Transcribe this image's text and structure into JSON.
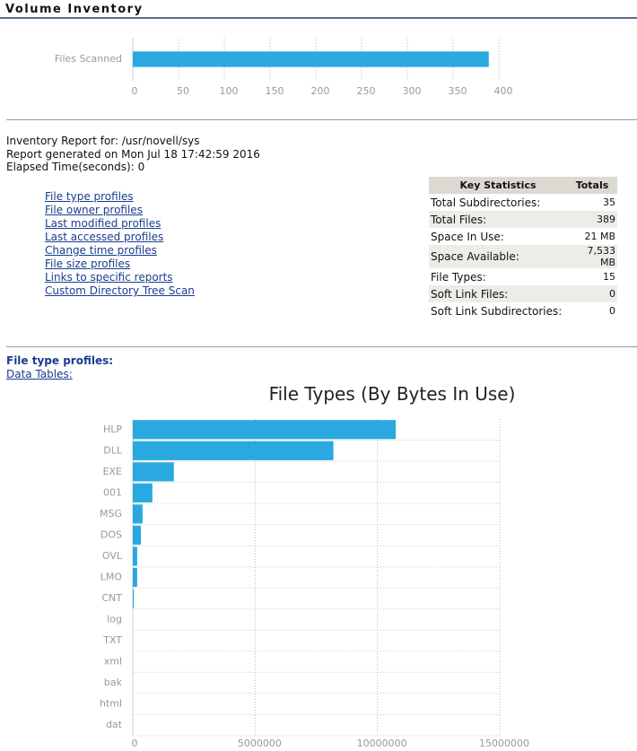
{
  "header": {
    "title": "Volume Inventory"
  },
  "report": {
    "lines": [
      "Inventory Report for: /usr/novell/sys",
      "Report generated on Mon Jul 18 17:42:59 2016",
      "Elapsed Time(seconds): 0"
    ]
  },
  "links": [
    "File type profiles",
    "File owner profiles",
    "Last modified profiles",
    "Last accessed profiles",
    "Change time profiles",
    "File size profiles",
    "Links to specific reports",
    "Custom Directory Tree Scan"
  ],
  "key_statistics": {
    "header": [
      "Key Statistics",
      "Totals"
    ],
    "rows": [
      [
        "Total Subdirectories:",
        "35"
      ],
      [
        "Total Files:",
        "389"
      ],
      [
        "Space In Use:",
        "21 MB"
      ],
      [
        "Space Available:",
        "7,533 MB"
      ],
      [
        "File Types:",
        "15"
      ],
      [
        "Soft Link Files:",
        "0"
      ],
      [
        "Soft Link Subdirectories:",
        "0"
      ]
    ]
  },
  "section": {
    "title": "File type profiles:",
    "link": "Data Tables:"
  },
  "chart_data": [
    {
      "type": "bar",
      "orientation": "horizontal",
      "categories": [
        "Files Scanned"
      ],
      "values": [
        389
      ],
      "color": "#29a9e0",
      "xlim": [
        0,
        400
      ],
      "xticks": [
        0,
        50,
        100,
        150,
        200,
        250,
        300,
        350,
        400
      ],
      "grid": true
    },
    {
      "type": "bar",
      "orientation": "horizontal",
      "title": "File Types (By Bytes In Use)",
      "categories": [
        "HLP",
        "DLL",
        "EXE",
        "001",
        "MSG",
        "DOS",
        "OVL",
        "LMO",
        "CNT",
        "log",
        "TXT",
        "xml",
        "bak",
        "html",
        "dat"
      ],
      "values": [
        10750000,
        8200000,
        1680000,
        800000,
        400000,
        330000,
        180000,
        180000,
        40000,
        0,
        0,
        0,
        0,
        0,
        0
      ],
      "color": "#29a9e0",
      "xlim": [
        0,
        15000000
      ],
      "xticks": [
        0,
        5000000,
        10000000,
        15000000
      ],
      "grid": true
    }
  ]
}
